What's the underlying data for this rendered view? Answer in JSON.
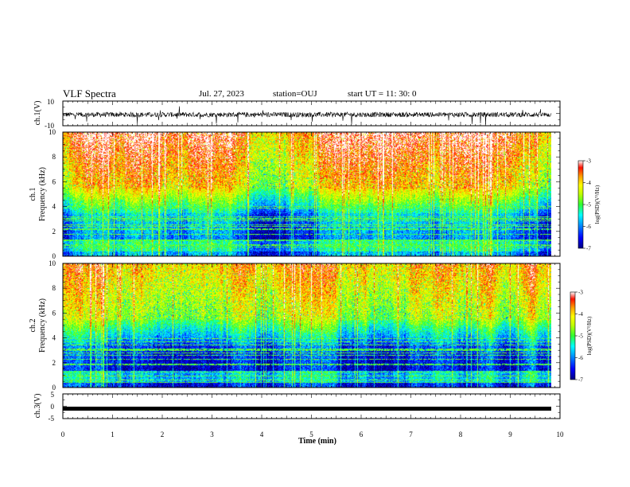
{
  "header": {
    "title": "VLF Spectra",
    "date": "Jul. 27, 2023",
    "station": "station=OUJ",
    "start": "start UT =  11: 30: 0"
  },
  "chart_data": [
    {
      "type": "line",
      "panel": "ch1-waveform",
      "ylabel": "ch.1(V)",
      "ylim": [
        -10,
        10
      ],
      "yticks": [
        "10",
        "-10"
      ],
      "xlim": [
        0,
        10
      ],
      "baseline": 0,
      "noise_band": [
        -3,
        1
      ],
      "color": "#000000"
    },
    {
      "type": "heatmap",
      "panel": "ch1-spectrogram",
      "ylabel": "ch.1\nFrequency (kHz)",
      "ylabel_lines": [
        "ch.1",
        "Frequency (kHz)"
      ],
      "ylim": [
        0,
        10
      ],
      "yticks": [
        "0",
        "2",
        "4",
        "6",
        "8",
        "10"
      ],
      "xlim": [
        0,
        10
      ],
      "colorbar": {
        "label": "log(PSD)(V²/Hz)",
        "range": [
          -7,
          -3
        ],
        "ticks": [
          "-3",
          "-4",
          "-5",
          "-6",
          "-7"
        ]
      }
    },
    {
      "type": "heatmap",
      "panel": "ch2-spectrogram",
      "ylabel": "ch.2\nFrequency (kHz)",
      "ylabel_lines": [
        "ch.2",
        "Frequency (kHz)"
      ],
      "ylim": [
        0,
        10
      ],
      "yticks": [
        "0",
        "2",
        "4",
        "6",
        "8",
        "10"
      ],
      "xlim": [
        0,
        10
      ],
      "colorbar": {
        "label": "log(PSD)(V²/Hz)",
        "range": [
          -7,
          -3
        ],
        "ticks": [
          "-3",
          "-4",
          "-5",
          "-6",
          "-7"
        ]
      }
    },
    {
      "type": "line",
      "panel": "ch3-waveform",
      "ylabel": "ch.3(V)",
      "ylim": [
        -5,
        5
      ],
      "yticks": [
        "5",
        "0",
        "-5"
      ],
      "xlim": [
        0,
        10
      ],
      "baseline": -1,
      "color": "#000000"
    }
  ],
  "xaxis": {
    "label": "Time (min)",
    "ticks": [
      "0",
      "1",
      "2",
      "3",
      "4",
      "5",
      "6",
      "7",
      "8",
      "9",
      "10"
    ]
  },
  "colors": {
    "scale": [
      "#000080",
      "#0000ff",
      "#00a0ff",
      "#00ffff",
      "#30ff60",
      "#a0ff00",
      "#ffff00",
      "#ffa000",
      "#ff3000",
      "#ff0000",
      "#ffffff"
    ]
  }
}
